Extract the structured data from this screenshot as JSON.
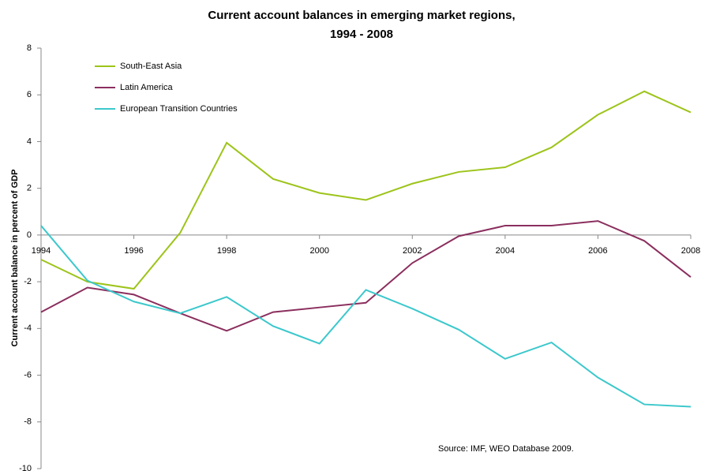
{
  "chart_data": {
    "type": "line",
    "title": [
      "Current account balances in emerging market regions,",
      "1994 - 2008"
    ],
    "y_label": "Current account balance in percent of GDP",
    "annotation": "Source: IMF, WEO Database 2009.",
    "x": [
      1994,
      1995,
      1996,
      1997,
      1998,
      1999,
      2000,
      2001,
      2002,
      2003,
      2004,
      2005,
      2006,
      2007,
      2008
    ],
    "series": [
      {
        "name": "South-East Asia",
        "color": "#9dc41a",
        "values": [
          -1.05,
          -2.0,
          -2.3,
          0.1,
          3.95,
          2.4,
          1.8,
          1.5,
          2.2,
          2.7,
          2.9,
          3.75,
          5.15,
          6.15,
          5.25
        ]
      },
      {
        "name": "Latin America",
        "color": "#8b2f5e",
        "values": [
          -3.3,
          -2.25,
          -2.55,
          -3.35,
          -4.1,
          -3.3,
          -3.1,
          -2.9,
          -1.2,
          -0.05,
          0.4,
          0.4,
          0.6,
          -0.25,
          -1.8
        ]
      },
      {
        "name": "European Transition Countries",
        "color": "#3cc8cc",
        "values": [
          0.4,
          -1.95,
          -2.85,
          -3.35,
          -2.65,
          -3.9,
          -4.65,
          -2.35,
          -3.15,
          -4.05,
          -5.3,
          -4.6,
          -6.1,
          -7.25,
          -7.35
        ]
      }
    ],
    "xlim": [
      1994,
      2008
    ],
    "xticks": [
      1994,
      1996,
      1998,
      2000,
      2002,
      2004,
      2006,
      2008
    ],
    "ylim": [
      -10,
      8
    ],
    "yticks": [
      -10,
      -8,
      -6,
      -4,
      -2,
      0,
      2,
      4,
      6,
      8
    ],
    "legend": "top-left"
  }
}
